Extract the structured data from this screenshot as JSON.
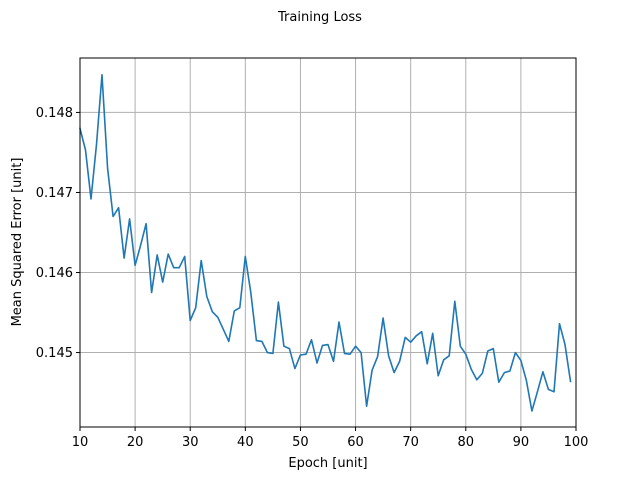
{
  "chart_data": {
    "type": "line",
    "title": "Training Loss",
    "xlabel": "Epoch [unit]",
    "ylabel": "Mean Squared Error [unit]",
    "xlim": [
      10,
      100
    ],
    "ylim": [
      0.14407,
      0.14868
    ],
    "xticks": [
      10,
      20,
      30,
      40,
      50,
      60,
      70,
      80,
      90,
      100
    ],
    "xtick_labels": [
      "10",
      "20",
      "30",
      "40",
      "50",
      "60",
      "70",
      "80",
      "90",
      "100"
    ],
    "yticks": [
      0.145,
      0.146,
      0.147,
      0.148
    ],
    "ytick_labels": [
      "0.145",
      "0.146",
      "0.147",
      "0.148"
    ],
    "grid": true,
    "line_color": "#1f77b4",
    "series": [
      {
        "x": [
          10,
          11,
          12,
          13,
          14,
          15,
          16,
          17,
          18,
          19,
          20,
          21,
          22,
          23,
          24,
          25,
          26,
          27,
          28,
          29,
          30,
          31,
          32,
          33,
          34,
          35,
          36,
          37,
          38,
          39,
          40,
          41,
          42,
          43,
          44,
          45,
          46,
          47,
          48,
          49,
          50,
          51,
          52,
          53,
          54,
          55,
          56,
          57,
          58,
          59,
          60,
          61,
          62,
          63,
          64,
          65,
          66,
          67,
          68,
          69,
          70,
          71,
          72,
          73,
          74,
          75,
          76,
          77,
          78,
          79,
          80,
          81,
          82,
          83,
          84,
          85,
          86,
          87,
          88,
          89,
          90,
          91,
          92,
          93,
          94,
          95,
          96,
          97,
          98,
          99
        ],
        "y": [
          0.1478,
          0.14753,
          0.14692,
          0.1476,
          0.14847,
          0.1473,
          0.1467,
          0.14681,
          0.14618,
          0.14667,
          0.14609,
          0.14634,
          0.14661,
          0.14575,
          0.14622,
          0.14588,
          0.14623,
          0.14606,
          0.14606,
          0.1462,
          0.1454,
          0.14556,
          0.14615,
          0.1457,
          0.14551,
          0.14544,
          0.14529,
          0.14514,
          0.14552,
          0.14556,
          0.1462,
          0.14575,
          0.14515,
          0.14514,
          0.145,
          0.14499,
          0.14563,
          0.14508,
          0.14505,
          0.1448,
          0.14497,
          0.14498,
          0.14516,
          0.14487,
          0.14509,
          0.1451,
          0.14489,
          0.14538,
          0.14499,
          0.14498,
          0.14508,
          0.145,
          0.14433,
          0.14478,
          0.14495,
          0.14543,
          0.14496,
          0.14475,
          0.14489,
          0.14519,
          0.14513,
          0.14521,
          0.14526,
          0.14486,
          0.14524,
          0.14471,
          0.14491,
          0.14496,
          0.14564,
          0.14508,
          0.14498,
          0.14479,
          0.14466,
          0.14474,
          0.14502,
          0.14505,
          0.14463,
          0.14475,
          0.14477,
          0.145,
          0.1449,
          0.14465,
          0.14427,
          0.14451,
          0.14476,
          0.14454,
          0.14451,
          0.14536,
          0.1451,
          0.14464
        ]
      }
    ]
  }
}
